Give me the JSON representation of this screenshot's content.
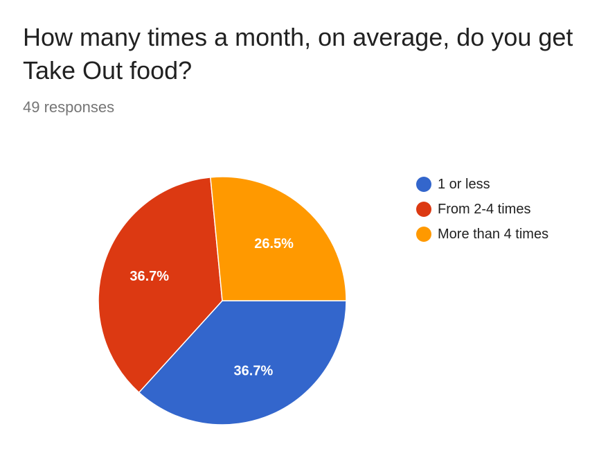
{
  "header": {
    "title": "How many times a month, on average, do you get Take Out food?",
    "responses": "49 responses"
  },
  "chart_data": {
    "type": "pie",
    "categories": [
      "1 or less",
      "From 2-4 times",
      "More than 4 times"
    ],
    "values": [
      36.7,
      36.7,
      26.5
    ],
    "labels": [
      "36.7%",
      "36.7%",
      "26.5%"
    ],
    "colors": [
      "#3366cc",
      "#dc3912",
      "#ff9900"
    ],
    "legend_position": "right",
    "start": "slices ordered clockwise from the 3 o'clock direction"
  }
}
